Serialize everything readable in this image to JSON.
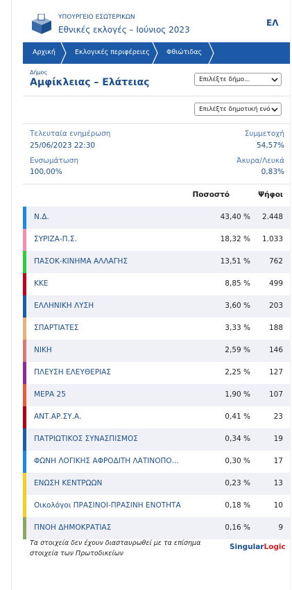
{
  "header": {
    "ministry": "ΥΠΟΥΡΓΕΙΟ ΕΣΩΤΕΡΙΚΩΝ",
    "title": "Εθνικές εκλογές – Ιούνιος 2023",
    "language": "ΕΛ"
  },
  "breadcrumb": [
    "Αρχική",
    "Εκλογικές περιφέρειες",
    "Φθιώτιδας"
  ],
  "municipality": {
    "label": "Δήμος",
    "name": "Αμφίκλειας – Ελάτειας",
    "select": "Επιλέξτε δήμο...",
    "unit_select": "Επιλέξτε δημοτική ενό"
  },
  "info": {
    "updated_label": "Τελευταία ενημέρωση",
    "updated": "25/06/2023 22:30",
    "turnout_label": "Συμμετοχή",
    "turnout": "54,57%",
    "integration_label": "Ενσωμάτωση",
    "integration": "100,00%",
    "invalid_label": "Άκυρα/Λευκά",
    "invalid": "0,83%"
  },
  "table": {
    "headers": [
      "Ποσοστό",
      "Ψήφοι"
    ],
    "rows": [
      {
        "party": "Ν.Δ.",
        "percent": "43,40 %",
        "votes": "2.448",
        "color": "#1e88e5"
      },
      {
        "party": "ΣΥΡΙΖΑ-Π.Σ.",
        "percent": "18,32 %",
        "votes": "1.033",
        "color": "#f48fb1"
      },
      {
        "party": "ΠΑΣΟΚ-ΚΙΝΗΜΑ ΑΛΛΑΓΗΣ",
        "percent": "13,51 %",
        "votes": "762",
        "color": "#2ecc40"
      },
      {
        "party": "ΚΚΕ",
        "percent": "8,85 %",
        "votes": "499",
        "color": "#c4001c"
      },
      {
        "party": "ΕΛΛΗΝΙΚΗ ΛΥΣΗ",
        "percent": "3,60 %",
        "votes": "203",
        "color": "#1a5ea8"
      },
      {
        "party": "ΣΠΑΡΤΙΑΤΕΣ",
        "percent": "3,33 %",
        "votes": "188",
        "color": "#e8b07a"
      },
      {
        "party": "ΝΙΚΗ",
        "percent": "2,59 %",
        "votes": "146",
        "color": "#d47a7a"
      },
      {
        "party": "ΠΛΕΥΣΗ ΕΛΕΥΘΕΡΙΑΣ",
        "percent": "2,25 %",
        "votes": "127",
        "color": "#8e2a9c"
      },
      {
        "party": "ΜΕΡΑ 25",
        "percent": "1,90 %",
        "votes": "107",
        "color": "#e85a3a"
      },
      {
        "party": "ΑΝΤ.ΑΡ.ΣΥ.Α.",
        "percent": "0,41 %",
        "votes": "23",
        "color": "#b0001a"
      },
      {
        "party": "ΠΑΤΡΙΩΤΙΚΟΣ ΣΥΝΑΣΠΙΣΜΟΣ",
        "percent": "0,34 %",
        "votes": "19",
        "color": "#1a5ea8"
      },
      {
        "party": "ΦΩΝΗ ΛΟΓΙΚΗΣ ΑΦΡΟΔΙΤΗ ΛΑΤΙΝΟΠΟ...",
        "percent": "0,30 %",
        "votes": "17",
        "color": "#1e88e5"
      },
      {
        "party": "ΕΝΩΣΗ ΚΕΝΤΡΩΩΝ",
        "percent": "0,23 %",
        "votes": "13",
        "color": "#f5d020"
      },
      {
        "party": "Οικολόγοι ΠΡΑΣΙΝΟΙ-ΠΡΑΣΙΝΗ ΕΝΟΤΗΤΑ",
        "percent": "0,18 %",
        "votes": "10",
        "color": "#f5d020"
      },
      {
        "party": "ΠΝΟΗ ΔΗΜΟΚΡΑΤΙΑΣ",
        "percent": "0,16 %",
        "votes": "9",
        "color": "#8aa860"
      }
    ]
  },
  "footer": {
    "note": "Τα στοιχεία δεν έχουν διασταυρωθεί με τα επίσημα στοιχεία των Πρωτοδικείων",
    "logo_main": "Singular",
    "logo_accent": "Logic"
  }
}
